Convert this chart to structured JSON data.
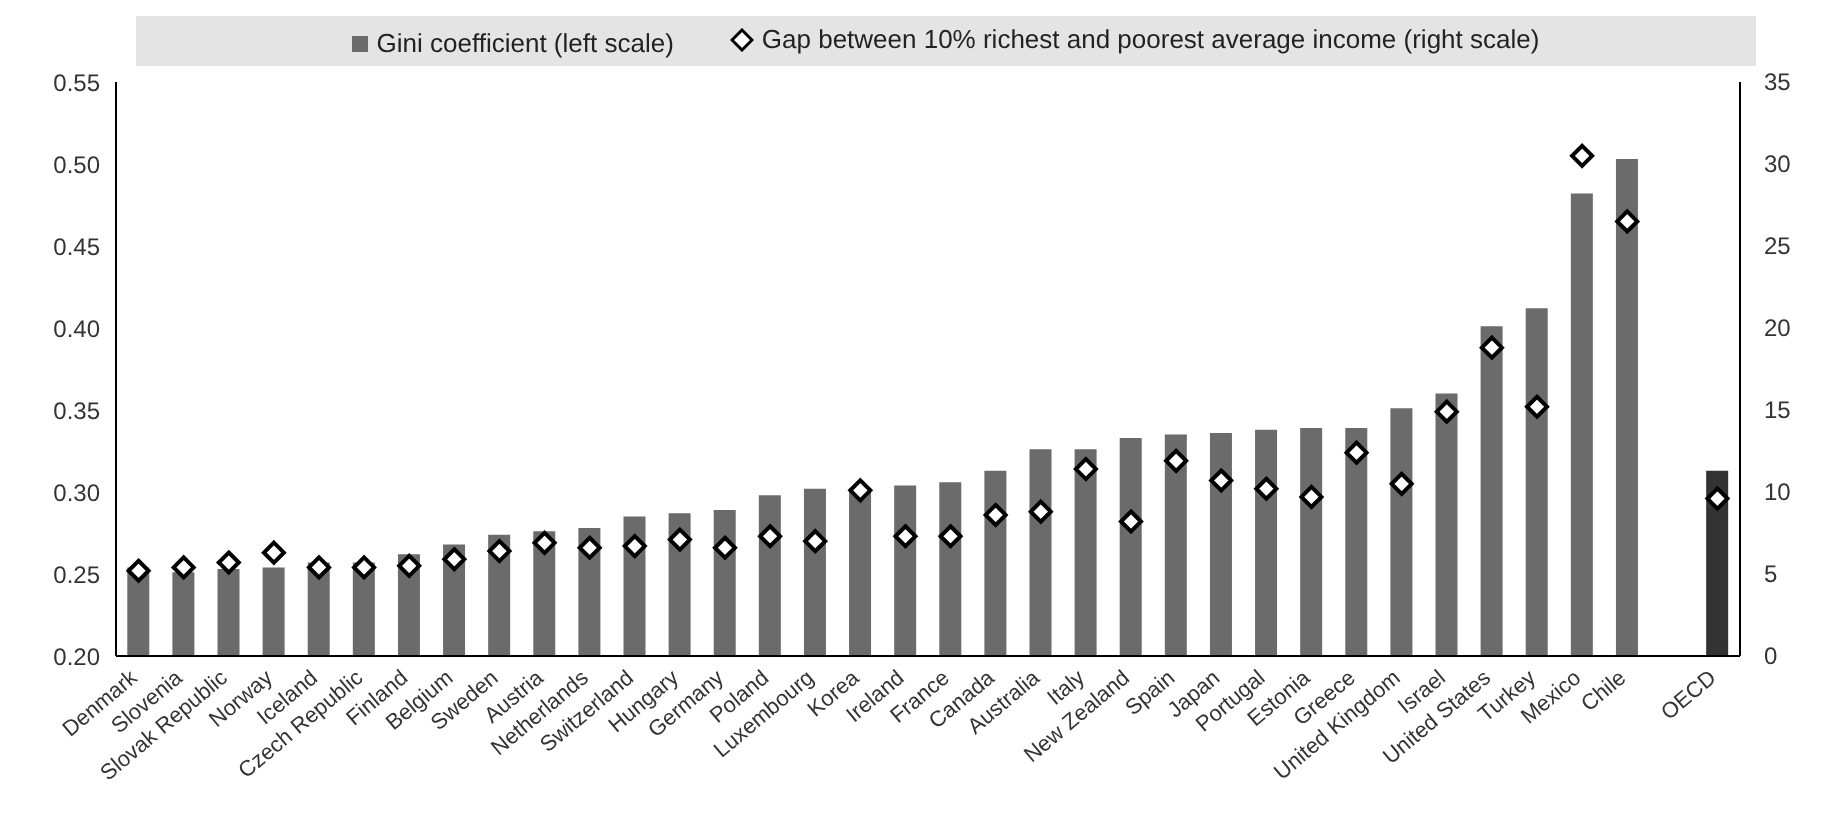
{
  "chart_data": {
    "type": "bar",
    "categories": [
      "Denmark",
      "Slovenia",
      "Slovak Republic",
      "Norway",
      "Iceland",
      "Czech Republic",
      "Finland",
      "Belgium",
      "Sweden",
      "Austria",
      "Netherlands",
      "Switzerland",
      "Hungary",
      "Germany",
      "Poland",
      "Luxembourg",
      "Korea",
      "Ireland",
      "France",
      "Canada",
      "Australia",
      "Italy",
      "New Zealand",
      "Spain",
      "Japan",
      "Portugal",
      "Estonia",
      "Greece",
      "United Kingdom",
      "Israel",
      "United States",
      "Turkey",
      "Mexico",
      "Chile",
      null,
      "OECD"
    ],
    "series": [
      {
        "name": "Gini coefficient (left scale)",
        "color": "#6b6b6b",
        "colors": [
          "#6b6b6b",
          "#6b6b6b",
          "#6b6b6b",
          "#6b6b6b",
          "#6b6b6b",
          "#6b6b6b",
          "#6b6b6b",
          "#6b6b6b",
          "#6b6b6b",
          "#6b6b6b",
          "#6b6b6b",
          "#6b6b6b",
          "#6b6b6b",
          "#6b6b6b",
          "#6b6b6b",
          "#6b6b6b",
          "#6b6b6b",
          "#6b6b6b",
          "#6b6b6b",
          "#6b6b6b",
          "#6b6b6b",
          "#6b6b6b",
          "#6b6b6b",
          "#6b6b6b",
          "#6b6b6b",
          "#6b6b6b",
          "#6b6b6b",
          "#6b6b6b",
          "#6b6b6b",
          "#6b6b6b",
          "#6b6b6b",
          "#6b6b6b",
          "#6b6b6b",
          "#6b6b6b",
          null,
          "#333333"
        ],
        "values": [
          0.254,
          0.251,
          0.253,
          0.254,
          0.257,
          0.257,
          0.262,
          0.268,
          0.274,
          0.276,
          0.278,
          0.285,
          0.287,
          0.289,
          0.298,
          0.302,
          0.302,
          0.304,
          0.306,
          0.313,
          0.326,
          0.326,
          0.333,
          0.335,
          0.336,
          0.338,
          0.339,
          0.339,
          0.351,
          0.36,
          0.401,
          0.412,
          0.482,
          0.503,
          null,
          0.313
        ]
      },
      {
        "name": "Gap between 10% richest and poorest average income (right scale)",
        "type": "scatter",
        "axis": "y2",
        "color": "#ffffff",
        "marker": "diamond",
        "values": [
          5.2,
          5.4,
          5.7,
          6.3,
          5.4,
          5.4,
          5.5,
          5.9,
          6.4,
          6.9,
          6.6,
          6.7,
          7.1,
          6.6,
          7.3,
          7.0,
          10.1,
          7.3,
          7.3,
          8.6,
          8.8,
          11.4,
          8.2,
          11.9,
          10.7,
          10.2,
          9.7,
          12.4,
          10.5,
          14.9,
          18.8,
          15.2,
          30.5,
          26.5,
          null,
          9.6
        ]
      }
    ],
    "ylim": [
      0.2,
      0.55
    ],
    "yticks": [
      {
        "value": 0.2,
        "label": "0.20"
      },
      {
        "value": 0.25,
        "label": "0.25"
      },
      {
        "value": 0.3,
        "label": "0.30"
      },
      {
        "value": 0.35,
        "label": "0.35"
      },
      {
        "value": 0.4,
        "label": "0.40"
      },
      {
        "value": 0.45,
        "label": "0.45"
      },
      {
        "value": 0.5,
        "label": "0.50"
      },
      {
        "value": 0.55,
        "label": "0.55"
      }
    ],
    "y2lim": [
      0,
      35
    ],
    "y2ticks": [
      0,
      5,
      10,
      15,
      20,
      25,
      30,
      35
    ],
    "grid": false,
    "legend": "top"
  }
}
